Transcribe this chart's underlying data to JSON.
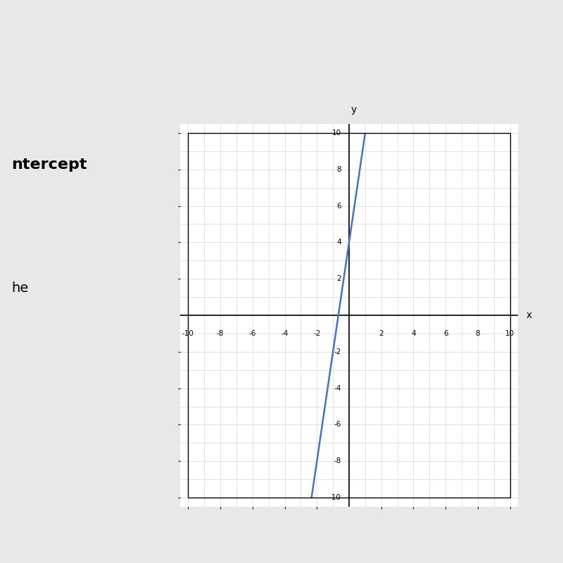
{
  "slope": 6,
  "y_intercept": 4,
  "line_color": "#4472C4",
  "line_width": 1.8,
  "xlim": [
    -10.5,
    10.5
  ],
  "ylim": [
    -10.5,
    10.5
  ],
  "xticks": [
    -10,
    -8,
    -6,
    -4,
    -2,
    2,
    4,
    6,
    8,
    10
  ],
  "yticks": [
    -10,
    -8,
    -6,
    -4,
    -2,
    2,
    4,
    6,
    8,
    10
  ],
  "xlabel": "x",
  "ylabel": "y",
  "minor_grid_color": "#cccccc",
  "major_grid_color": "#999999",
  "bg_color": "#ffffff",
  "outer_bg_color": "#e8e8e8",
  "top_bar_color": "#3a6bc4",
  "left_panel_bg": "#e8e8e8",
  "chart_border_color": "#000000"
}
